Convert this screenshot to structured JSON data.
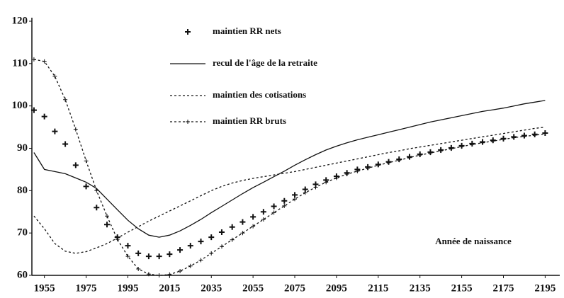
{
  "chart_data": {
    "type": "line",
    "annotation": "Année de naissance",
    "x": [
      1950,
      1955,
      1960,
      1965,
      1970,
      1975,
      1980,
      1985,
      1990,
      1995,
      2000,
      2005,
      2010,
      2015,
      2020,
      2025,
      2030,
      2035,
      2040,
      2045,
      2050,
      2055,
      2060,
      2065,
      2070,
      2075,
      2080,
      2085,
      2090,
      2095,
      2100,
      2105,
      2110,
      2115,
      2120,
      2125,
      2130,
      2135,
      2140,
      2145,
      2150,
      2155,
      2160,
      2165,
      2170,
      2175,
      2180,
      2185,
      2190,
      2195
    ],
    "series": [
      {
        "name": "maintien RR nets",
        "color": "#111111",
        "style": "plus",
        "values": [
          99,
          97.5,
          94,
          91,
          86,
          81,
          76,
          72,
          69,
          67,
          65.2,
          64.5,
          64.5,
          65,
          66,
          67,
          68,
          69,
          70.2,
          71.4,
          72.6,
          73.8,
          75,
          76.3,
          77.6,
          79,
          80.3,
          81.5,
          82.5,
          83.4,
          84.2,
          85,
          85.6,
          86.2,
          86.8,
          87.4,
          88,
          88.6,
          89.1,
          89.6,
          90.1,
          90.6,
          91.1,
          91.5,
          91.9,
          92.3,
          92.7,
          93,
          93.3,
          93.6
        ]
      },
      {
        "name": "recul de l'âge de la retraite",
        "color": "#111111",
        "style": "solid",
        "values": [
          89,
          85,
          84.5,
          84,
          83,
          82,
          80.5,
          78,
          75.5,
          73,
          71,
          69.5,
          69,
          69.5,
          70.5,
          71.8,
          73.2,
          74.8,
          76.3,
          77.8,
          79.3,
          80.7,
          82,
          83.3,
          84.6,
          86,
          87.3,
          88.5,
          89.6,
          90.5,
          91.3,
          92,
          92.6,
          93.2,
          93.8,
          94.4,
          95,
          95.6,
          96.2,
          96.7,
          97.2,
          97.7,
          98.2,
          98.7,
          99.1,
          99.5,
          100,
          100.5,
          100.9,
          101.3
        ]
      },
      {
        "name": "maintien des cotisations",
        "color": "#111111",
        "style": "dotted",
        "values": [
          74,
          71,
          67.5,
          65.7,
          65.2,
          65.6,
          66.5,
          67.5,
          68.8,
          70.2,
          71.5,
          72.8,
          74,
          75.2,
          76.4,
          77.6,
          78.8,
          80,
          81,
          81.8,
          82.4,
          82.9,
          83.3,
          83.7,
          84.1,
          84.5,
          85,
          85.5,
          86,
          86.5,
          87,
          87.5,
          88,
          88.5,
          89,
          89.4,
          89.9,
          90.3,
          90.7,
          91.1,
          91.5,
          91.9,
          92.3,
          92.7,
          93.1,
          93.5,
          93.9,
          94.3,
          94.7,
          95
        ]
      },
      {
        "name": "maintien RR bruts",
        "color": "#111111",
        "style": "dotted-plus",
        "values": [
          111,
          110.5,
          107,
          101.5,
          94.5,
          87,
          80,
          74,
          68.5,
          64.5,
          61.5,
          60.3,
          60,
          60.2,
          61,
          62.2,
          63.6,
          65.2,
          66.8,
          68.4,
          70,
          71.6,
          73.2,
          74.8,
          76.4,
          78,
          79.5,
          80.8,
          82,
          83,
          83.9,
          84.6,
          85.3,
          86,
          86.6,
          87.2,
          87.8,
          88.4,
          88.9,
          89.4,
          89.9,
          90.4,
          90.9,
          91.3,
          91.7,
          92.1,
          92.5,
          92.8,
          93.1,
          93.4
        ]
      }
    ],
    "xlim": [
      1949,
      2202
    ],
    "xticks": [
      1955,
      1975,
      1995,
      2015,
      2035,
      2055,
      2075,
      2095,
      2115,
      2135,
      2155,
      2175,
      2195
    ],
    "ylim": [
      60,
      120
    ],
    "yticks": [
      60,
      70,
      80,
      90,
      100,
      110,
      120
    ],
    "grid": false
  }
}
